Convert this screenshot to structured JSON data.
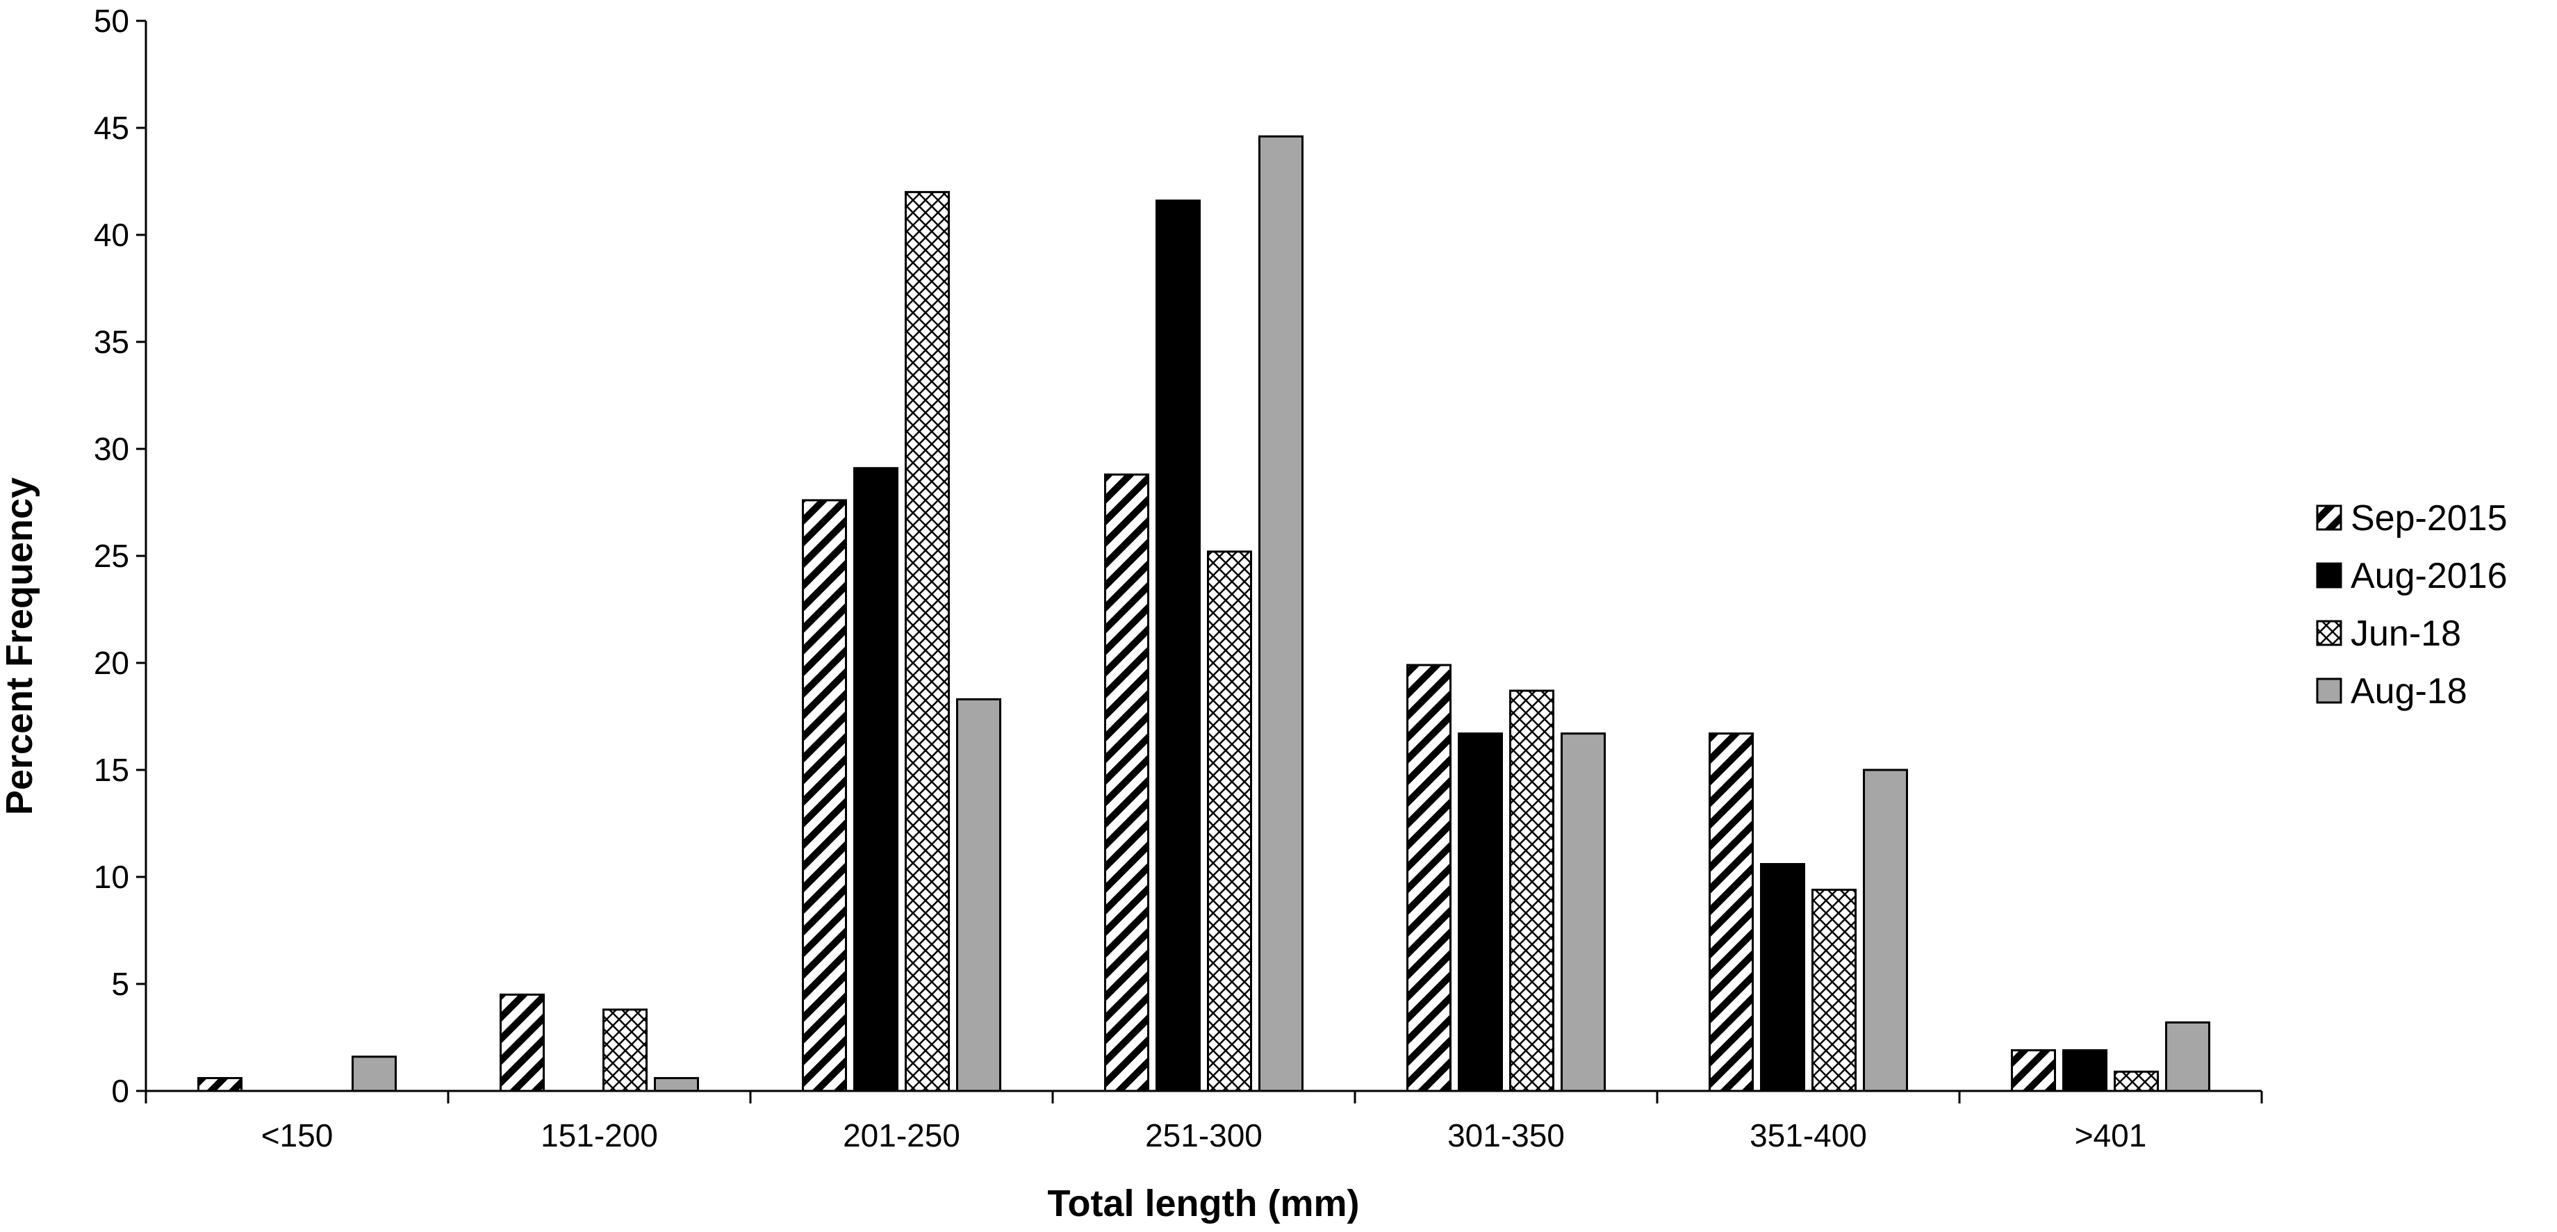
{
  "chart_data": {
    "type": "bar",
    "xlabel": "Total length (mm)",
    "ylabel": "Percent Frequency",
    "ylim": [
      0,
      50
    ],
    "yticks": [
      0,
      5,
      10,
      15,
      20,
      25,
      30,
      35,
      40,
      45,
      50
    ],
    "categories": [
      "<150",
      "151-200",
      "201-250",
      "251-300",
      "301-350",
      "351-400",
      ">401"
    ],
    "legend_position": "right",
    "grid": false,
    "series": [
      {
        "name": "Sep-2015",
        "pattern": "diagonal-hatch",
        "values": [
          0.6,
          4.5,
          27.6,
          28.8,
          19.9,
          16.7,
          1.9
        ]
      },
      {
        "name": "Aug-2016",
        "pattern": "solid-black",
        "values": [
          0,
          0,
          29.1,
          41.6,
          16.7,
          10.6,
          1.9
        ]
      },
      {
        "name": "Jun-18",
        "pattern": "crosshatch",
        "values": [
          0,
          3.8,
          42.0,
          25.2,
          18.7,
          9.4,
          0.9
        ]
      },
      {
        "name": "Aug-18",
        "pattern": "solid-gray",
        "values": [
          1.6,
          0.6,
          18.3,
          44.6,
          16.7,
          15.0,
          3.2
        ]
      }
    ],
    "colors": {
      "black": "#000000",
      "gray": "#a6a6a6",
      "hatch_bg": "#ffffff"
    }
  }
}
